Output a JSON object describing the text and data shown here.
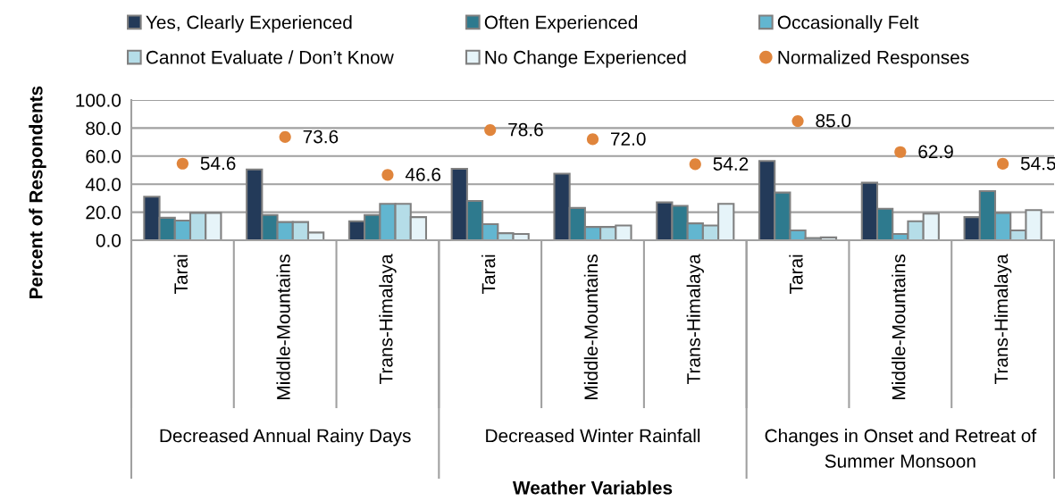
{
  "chart_data": {
    "type": "bar",
    "categories": [
      "Tarai",
      "Middle-Mountains",
      "Trans-Himalaya",
      "Tarai",
      "Middle-Mountains",
      "Trans-Himalaya",
      "Tarai",
      "Middle-Mountains",
      "Trans-Himalaya"
    ],
    "series": [
      {
        "name": "Yes, Clearly Experienced",
        "color": "#233a59",
        "values": [
          31,
          50.5,
          13.5,
          51,
          47.5,
          27,
          56.5,
          41,
          16.5
        ]
      },
      {
        "name": "Often Experienced",
        "color": "#2e7a8e",
        "values": [
          16,
          18,
          18,
          28,
          23,
          24.5,
          34,
          22.5,
          35
        ]
      },
      {
        "name": "Occasionally Felt",
        "color": "#62b6d0",
        "values": [
          14,
          13,
          26,
          11.5,
          9.5,
          12,
          7,
          4.5,
          19.5
        ]
      },
      {
        "name": "Cannot Evaluate / Don’t Know",
        "color": "#b5dde8",
        "values": [
          19.5,
          13,
          26,
          5,
          9.5,
          10.5,
          1.5,
          13.5,
          7
        ]
      },
      {
        "name": "No Change Experienced",
        "color": "#e6f4f9",
        "values": [
          19.5,
          5.5,
          16.5,
          4.5,
          10.5,
          26,
          2,
          19,
          21.5
        ]
      },
      {
        "name": "Normalized Responses",
        "type": "scatter",
        "marker": "circle",
        "color": "#e0853c",
        "values": [
          54.6,
          73.6,
          46.6,
          78.6,
          72.0,
          54.2,
          85.0,
          62.9,
          54.5
        ],
        "value_labels": [
          "54.6",
          "73.6",
          "46.6",
          "78.6",
          "72.0",
          "54.2",
          "85.0",
          "62.9",
          "54.5"
        ]
      }
    ],
    "ylabel": "Percent of Respondents",
    "xlabel": "Weather Variables",
    "annotations": [
      "Decreased Annual Rainy Days",
      "Decreased Winter Rainfall",
      "Changes in Onset and Retreat of\nSummer Monsoon"
    ],
    "ylim": [
      0,
      100
    ],
    "yticks": [
      {
        "value": 0,
        "label": "0.0"
      },
      {
        "value": 20,
        "label": "20.0"
      },
      {
        "value": 40,
        "label": "40.0"
      },
      {
        "value": 60,
        "label": "60.0"
      },
      {
        "value": 80,
        "label": "80.0"
      },
      {
        "value": 100,
        "label": "100.0"
      }
    ],
    "grid": "y",
    "legend": "top"
  }
}
